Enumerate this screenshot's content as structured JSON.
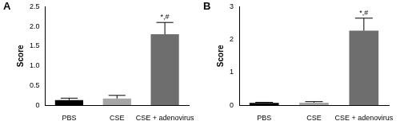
{
  "chart_data": [
    {
      "type": "bar",
      "title": "A",
      "y_label": "Score",
      "categories": [
        "PBS",
        "CSE",
        "CSE + adenovirus"
      ],
      "values": [
        0.13,
        0.17,
        1.8
      ],
      "errors": [
        0.05,
        0.08,
        0.3
      ],
      "colors": [
        "#000000",
        "#a6a6a6",
        "#6e6e6e"
      ],
      "annotations": [
        {
          "category": "CSE + adenovirus",
          "text": "*,#"
        }
      ],
      "ylim": [
        0,
        2.5
      ],
      "yticks": [
        0,
        0.5,
        {
          "value": 1,
          "label": "1.0"
        },
        1.5,
        {
          "value": 2,
          "label": "2.0"
        },
        2.5
      ],
      "grid": false
    },
    {
      "type": "bar",
      "title": "B",
      "y_label": "Score",
      "categories": [
        "PBS",
        "CSE",
        "CSE + adenovirus"
      ],
      "values": [
        0.07,
        0.08,
        2.27
      ],
      "errors": [
        0.02,
        0.03,
        0.38
      ],
      "colors": [
        "#000000",
        "#a6a6a6",
        "#6e6e6e"
      ],
      "annotations": [
        {
          "category": "CSE + adenovirus",
          "text": "*,#"
        }
      ],
      "ylim": [
        0,
        3
      ],
      "yticks": [
        0,
        1,
        2,
        3
      ],
      "grid": false
    }
  ]
}
